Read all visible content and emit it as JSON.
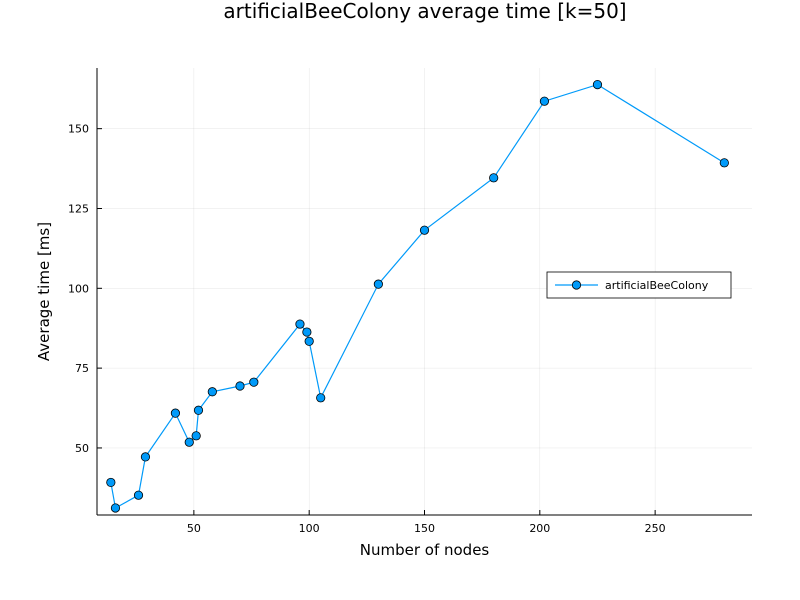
{
  "chart_data": {
    "type": "line",
    "title": "artificialBeeColony average time [k=50]",
    "xlabel": "Number of nodes",
    "ylabel": "Average time [ms]",
    "xlim": [
      8,
      292
    ],
    "ylim": [
      29,
      169
    ],
    "xticks": [
      50,
      100,
      150,
      200,
      250
    ],
    "yticks": [
      50,
      75,
      100,
      125,
      150
    ],
    "grid": true,
    "legend_position": "right",
    "series": [
      {
        "name": "artificialBeeColony",
        "color": "#009af9",
        "marker": "circle",
        "x": [
          14,
          16,
          26,
          29,
          42,
          48,
          51,
          52,
          58,
          70,
          76,
          96,
          99,
          100,
          105,
          130,
          150,
          180,
          202,
          225,
          280
        ],
        "y": [
          39.2,
          31.2,
          35.2,
          47.2,
          60.9,
          51.8,
          53.8,
          61.8,
          67.6,
          69.4,
          70.6,
          88.8,
          86.3,
          83.4,
          65.7,
          101.3,
          118.2,
          134.6,
          158.6,
          163.8,
          139.3
        ]
      }
    ]
  }
}
